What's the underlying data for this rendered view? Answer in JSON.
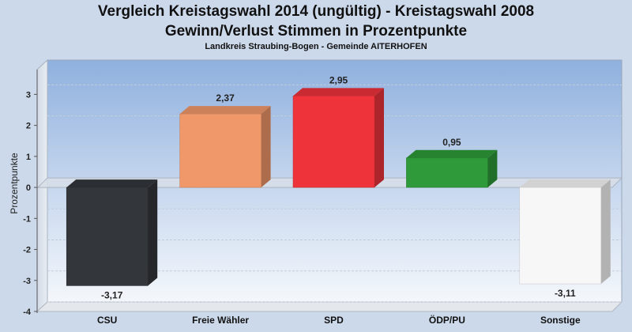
{
  "chart_data": {
    "type": "bar",
    "title": "Vergleich Kreistagswahl 2014 (ungültig) - Kreistagswahl 2008",
    "title_line2": "Gewinn/Verlust Stimmen in Prozentpunkte",
    "subtitle": "Landkreis Straubing-Bogen - Gemeinde AITERHOFEN",
    "ylabel": "Prozentpunkte",
    "xlabel": "",
    "ylim": [
      -4,
      3.8
    ],
    "yticks": [
      3,
      2,
      1,
      0,
      -1,
      -2,
      -3,
      -4
    ],
    "categories": [
      "CSU",
      "Freie Wähler",
      "SPD",
      "ÖDP/PU",
      "Sonstige"
    ],
    "values": [
      -3.17,
      2.37,
      2.95,
      0.95,
      -3.11
    ],
    "value_labels": [
      "-3,17",
      "2,37",
      "2,95",
      "0,95",
      "-3,11"
    ],
    "colors": [
      "#33363b",
      "#f0986a",
      "#ee333b",
      "#2f9a3a",
      "#f7f7f8"
    ],
    "grid": true,
    "legend": "none"
  }
}
